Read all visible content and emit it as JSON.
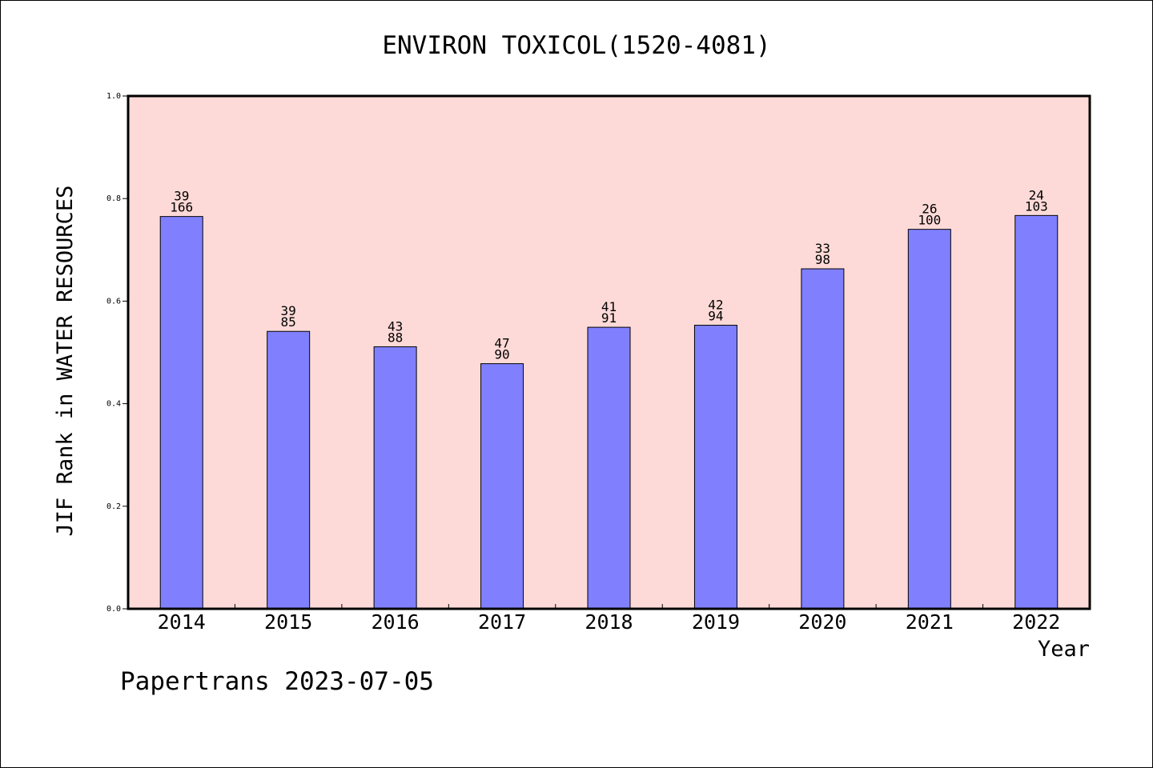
{
  "chart_data": {
    "type": "bar",
    "title": "ENVIRON TOXICOL(1520-4081)",
    "xlabel": "Year",
    "ylabel": "JIF Rank in WATER RESOURCES",
    "ylim": [
      0,
      1.0
    ],
    "yticks": [
      "0.0",
      "0.2",
      "0.4",
      "0.6",
      "0.8",
      "1.0"
    ],
    "categories": [
      "2014",
      "2015",
      "2016",
      "2017",
      "2018",
      "2019",
      "2020",
      "2021",
      "2022"
    ],
    "values": [
      0.765,
      0.541,
      0.511,
      0.478,
      0.549,
      0.553,
      0.663,
      0.74,
      0.767
    ],
    "rank_labels": [
      "39",
      "39",
      "43",
      "47",
      "41",
      "42",
      "33",
      "26",
      "24"
    ],
    "total_labels": [
      "166",
      "85",
      "88",
      "90",
      "91",
      "94",
      "98",
      "100",
      "103"
    ],
    "grid": false,
    "colors": {
      "plot_background": "#fddad7",
      "bar_fill": "#8080ff",
      "bar_stroke": "#000000"
    }
  },
  "footer": "Papertrans 2023-07-05"
}
